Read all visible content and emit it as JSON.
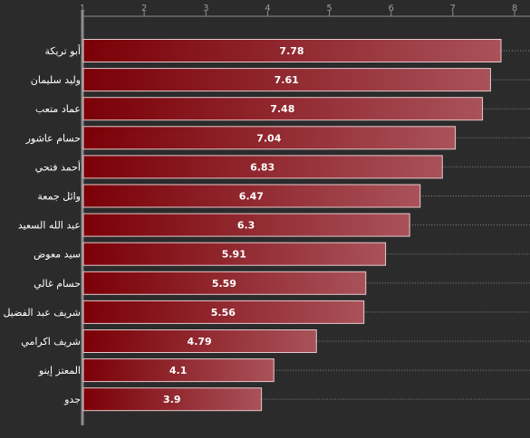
{
  "chart_data": {
    "type": "bar",
    "orientation": "horizontal",
    "categories": [
      "أبو تريكة",
      "وليد سليمان",
      "عماد متعب",
      "حسام عاشور",
      "أحمد فتحي",
      "وائل جمعة",
      "عبد الله السعيد",
      "سيد معوض",
      "حسام غالي",
      "شريف عبد الفضيل",
      "شريف اكرامي",
      "المعتز إينو",
      "جدو"
    ],
    "values": [
      7.78,
      7.61,
      7.48,
      7.04,
      6.83,
      6.47,
      6.3,
      5.91,
      5.59,
      5.56,
      4.79,
      4.1,
      3.9
    ],
    "value_labels": [
      "7.78",
      "7.61",
      "7.48",
      "7.04",
      "6.83",
      "6.47",
      "6.3",
      "5.91",
      "5.59",
      "5.56",
      "4.79",
      "4.1",
      "3.9"
    ],
    "xlim": [
      1,
      8
    ],
    "xticks": [
      "1",
      "2",
      "3",
      "4",
      "5",
      "6",
      "7",
      "8"
    ],
    "axis_position": "top",
    "grid": true,
    "legend": false,
    "colors": {
      "background": "#2b2b2b",
      "bar_start": "#7a0006",
      "bar_end": "#a9525a",
      "bar_border": "#e8c9cc",
      "grid": "#8a8a8a",
      "axis": "#8d8d8d"
    }
  }
}
